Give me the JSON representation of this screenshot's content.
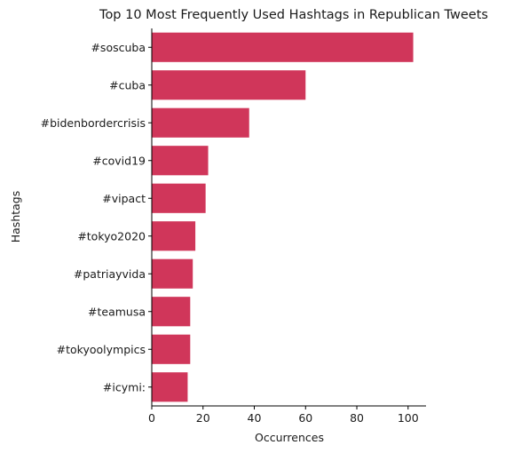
{
  "chart_data": {
    "type": "bar",
    "orientation": "horizontal",
    "title": "Top 10 Most Frequently Used Hashtags in Republican Tweets",
    "xlabel": "Occurrences",
    "ylabel": "Hashtags",
    "categories": [
      "#soscuba",
      "#cuba",
      "#bidenbordercrisis",
      "#covid19",
      "#vipact",
      "#tokyo2020",
      "#patriayvida",
      "#teamusa",
      "#tokyoolympics",
      "#icymi:"
    ],
    "values": [
      102,
      60,
      38,
      22,
      21,
      17,
      16,
      15,
      15,
      14
    ],
    "xlim": [
      0,
      107
    ],
    "xticks": [
      0,
      20,
      40,
      60,
      80,
      100
    ],
    "grid": false,
    "bar_color": "#d0365a"
  }
}
